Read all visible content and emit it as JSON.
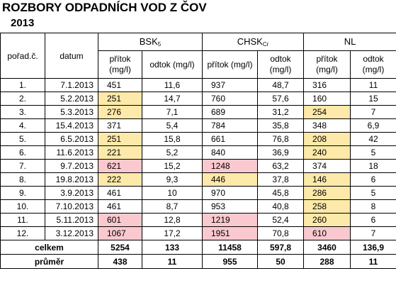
{
  "title": "ROZBORY ODPADNÍCH VOD Z ČOV",
  "year": "2013",
  "headers": {
    "index": "pořad.č.",
    "date": "datum",
    "groups": [
      {
        "name": "BSK",
        "sub": "5"
      },
      {
        "name": "CHSK",
        "sub": "Cr"
      },
      {
        "name": "NL",
        "sub": ""
      }
    ],
    "inflow": "přítok (mg/l)",
    "outflow": "odtok (mg/l)"
  },
  "rows": [
    {
      "idx": "1.",
      "date": "7.1.2013",
      "bsk_in": "451",
      "bsk_out": "11,6",
      "chsk_in": "937",
      "chsk_out": "48,7",
      "nl_in": "316",
      "nl_out": "11",
      "hl": {}
    },
    {
      "idx": "2.",
      "date": "5.2.2013",
      "bsk_in": "251",
      "bsk_out": "14,7",
      "chsk_in": "760",
      "chsk_out": "57,6",
      "nl_in": "160",
      "nl_out": "15",
      "hl": {
        "bsk_in": "#fde9a9"
      }
    },
    {
      "idx": "3.",
      "date": "5.3.2013",
      "bsk_in": "276",
      "bsk_out": "7,1",
      "chsk_in": "689",
      "chsk_out": "31,2",
      "nl_in": "254",
      "nl_out": "7",
      "hl": {
        "bsk_in": "#fde9a9",
        "nl_in": "#fde9a9"
      }
    },
    {
      "idx": "4.",
      "date": "15.4.2013",
      "bsk_in": "371",
      "bsk_out": "5,4",
      "chsk_in": "784",
      "chsk_out": "35,8",
      "nl_in": "348",
      "nl_out": "6,9",
      "hl": {}
    },
    {
      "idx": "5.",
      "date": "6.5.2013",
      "bsk_in": "251",
      "bsk_out": "15,8",
      "chsk_in": "661",
      "chsk_out": "76,8",
      "nl_in": "208",
      "nl_out": "42",
      "hl": {
        "bsk_in": "#fde9a9",
        "nl_in": "#fde9a9"
      }
    },
    {
      "idx": "6.",
      "date": "11.6.2013",
      "bsk_in": "221",
      "bsk_out": "5,2",
      "chsk_in": "840",
      "chsk_out": "36,9",
      "nl_in": "240",
      "nl_out": "5",
      "hl": {
        "bsk_in": "#fde9a9",
        "nl_in": "#fde9a9"
      }
    },
    {
      "idx": "7.",
      "date": "9.7.2013",
      "bsk_in": "621",
      "bsk_out": "15,2",
      "chsk_in": "1248",
      "chsk_out": "63,2",
      "nl_in": "374",
      "nl_out": "18",
      "hl": {
        "bsk_in": "#f9c9cf",
        "chsk_in": "#f9c9cf"
      }
    },
    {
      "idx": "8.",
      "date": "19.8.2013",
      "bsk_in": "222",
      "bsk_out": "9,3",
      "chsk_in": "446",
      "chsk_out": "37,8",
      "nl_in": "146",
      "nl_out": "6",
      "hl": {
        "bsk_in": "#fde9a9",
        "chsk_in": "#fde9a9",
        "nl_in": "#fde9a9"
      }
    },
    {
      "idx": "9.",
      "date": "3.9.2013",
      "bsk_in": "461",
      "bsk_out": "10",
      "chsk_in": "970",
      "chsk_out": "45,8",
      "nl_in": "286",
      "nl_out": "5",
      "hl": {
        "nl_in": "#fde9a9"
      }
    },
    {
      "idx": "10.",
      "date": "7.10.2013",
      "bsk_in": "461",
      "bsk_out": "8,7",
      "chsk_in": "953",
      "chsk_out": "40,8",
      "nl_in": "258",
      "nl_out": "8",
      "hl": {
        "nl_in": "#fde9a9"
      }
    },
    {
      "idx": "11.",
      "date": "5.11.2013",
      "bsk_in": "601",
      "bsk_out": "12,8",
      "chsk_in": "1219",
      "chsk_out": "52,4",
      "nl_in": "260",
      "nl_out": "6",
      "hl": {
        "bsk_in": "#f9c9cf",
        "chsk_in": "#f9c9cf",
        "nl_in": "#fde9a9"
      }
    },
    {
      "idx": "12.",
      "date": "3.12.2013",
      "bsk_in": "1067",
      "bsk_out": "17,2",
      "chsk_in": "1951",
      "chsk_out": "70,8",
      "nl_in": "610",
      "nl_out": "7",
      "hl": {
        "bsk_in": "#f9c9cf",
        "chsk_in": "#f9c9cf",
        "nl_in": "#f9c9cf"
      }
    }
  ],
  "total": {
    "label": "celkem",
    "bsk_in": "5254",
    "bsk_out": "133",
    "chsk_in": "11458",
    "chsk_out": "597,8",
    "nl_in": "3460",
    "nl_out": "136,9"
  },
  "average": {
    "label": "průměr",
    "bsk_in": "438",
    "bsk_out": "11",
    "chsk_in": "955",
    "chsk_out": "50",
    "nl_in": "288",
    "nl_out": "11"
  },
  "colors": {
    "yellow": "#fde9a9",
    "pink": "#f9c9cf"
  }
}
